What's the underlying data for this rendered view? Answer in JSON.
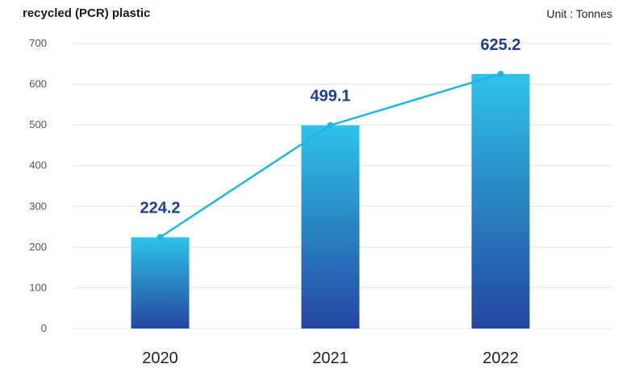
{
  "chart_data": {
    "type": "bar",
    "title": "recycled (PCR) plastic",
    "unit_label": "Unit : Tonnes",
    "categories": [
      "2020",
      "2021",
      "2022"
    ],
    "values": [
      224.2,
      499.1,
      625.2
    ],
    "data_labels": [
      "224.2",
      "499.1",
      "625.2"
    ],
    "overlay_line": {
      "type": "line",
      "values": [
        224.2,
        499.1,
        625.2
      ]
    },
    "ylim": [
      0,
      700
    ],
    "yticks": [
      "0",
      "100",
      "200",
      "300",
      "400",
      "500",
      "600",
      "700"
    ],
    "grid": true,
    "xlabel": "",
    "ylabel": "",
    "colors": {
      "bar_top": "#2ec3ea",
      "bar_bottom": "#2446a0",
      "line": "#1eb6e6",
      "label": "#1f3f95",
      "grid": "#e3e3e3"
    }
  }
}
